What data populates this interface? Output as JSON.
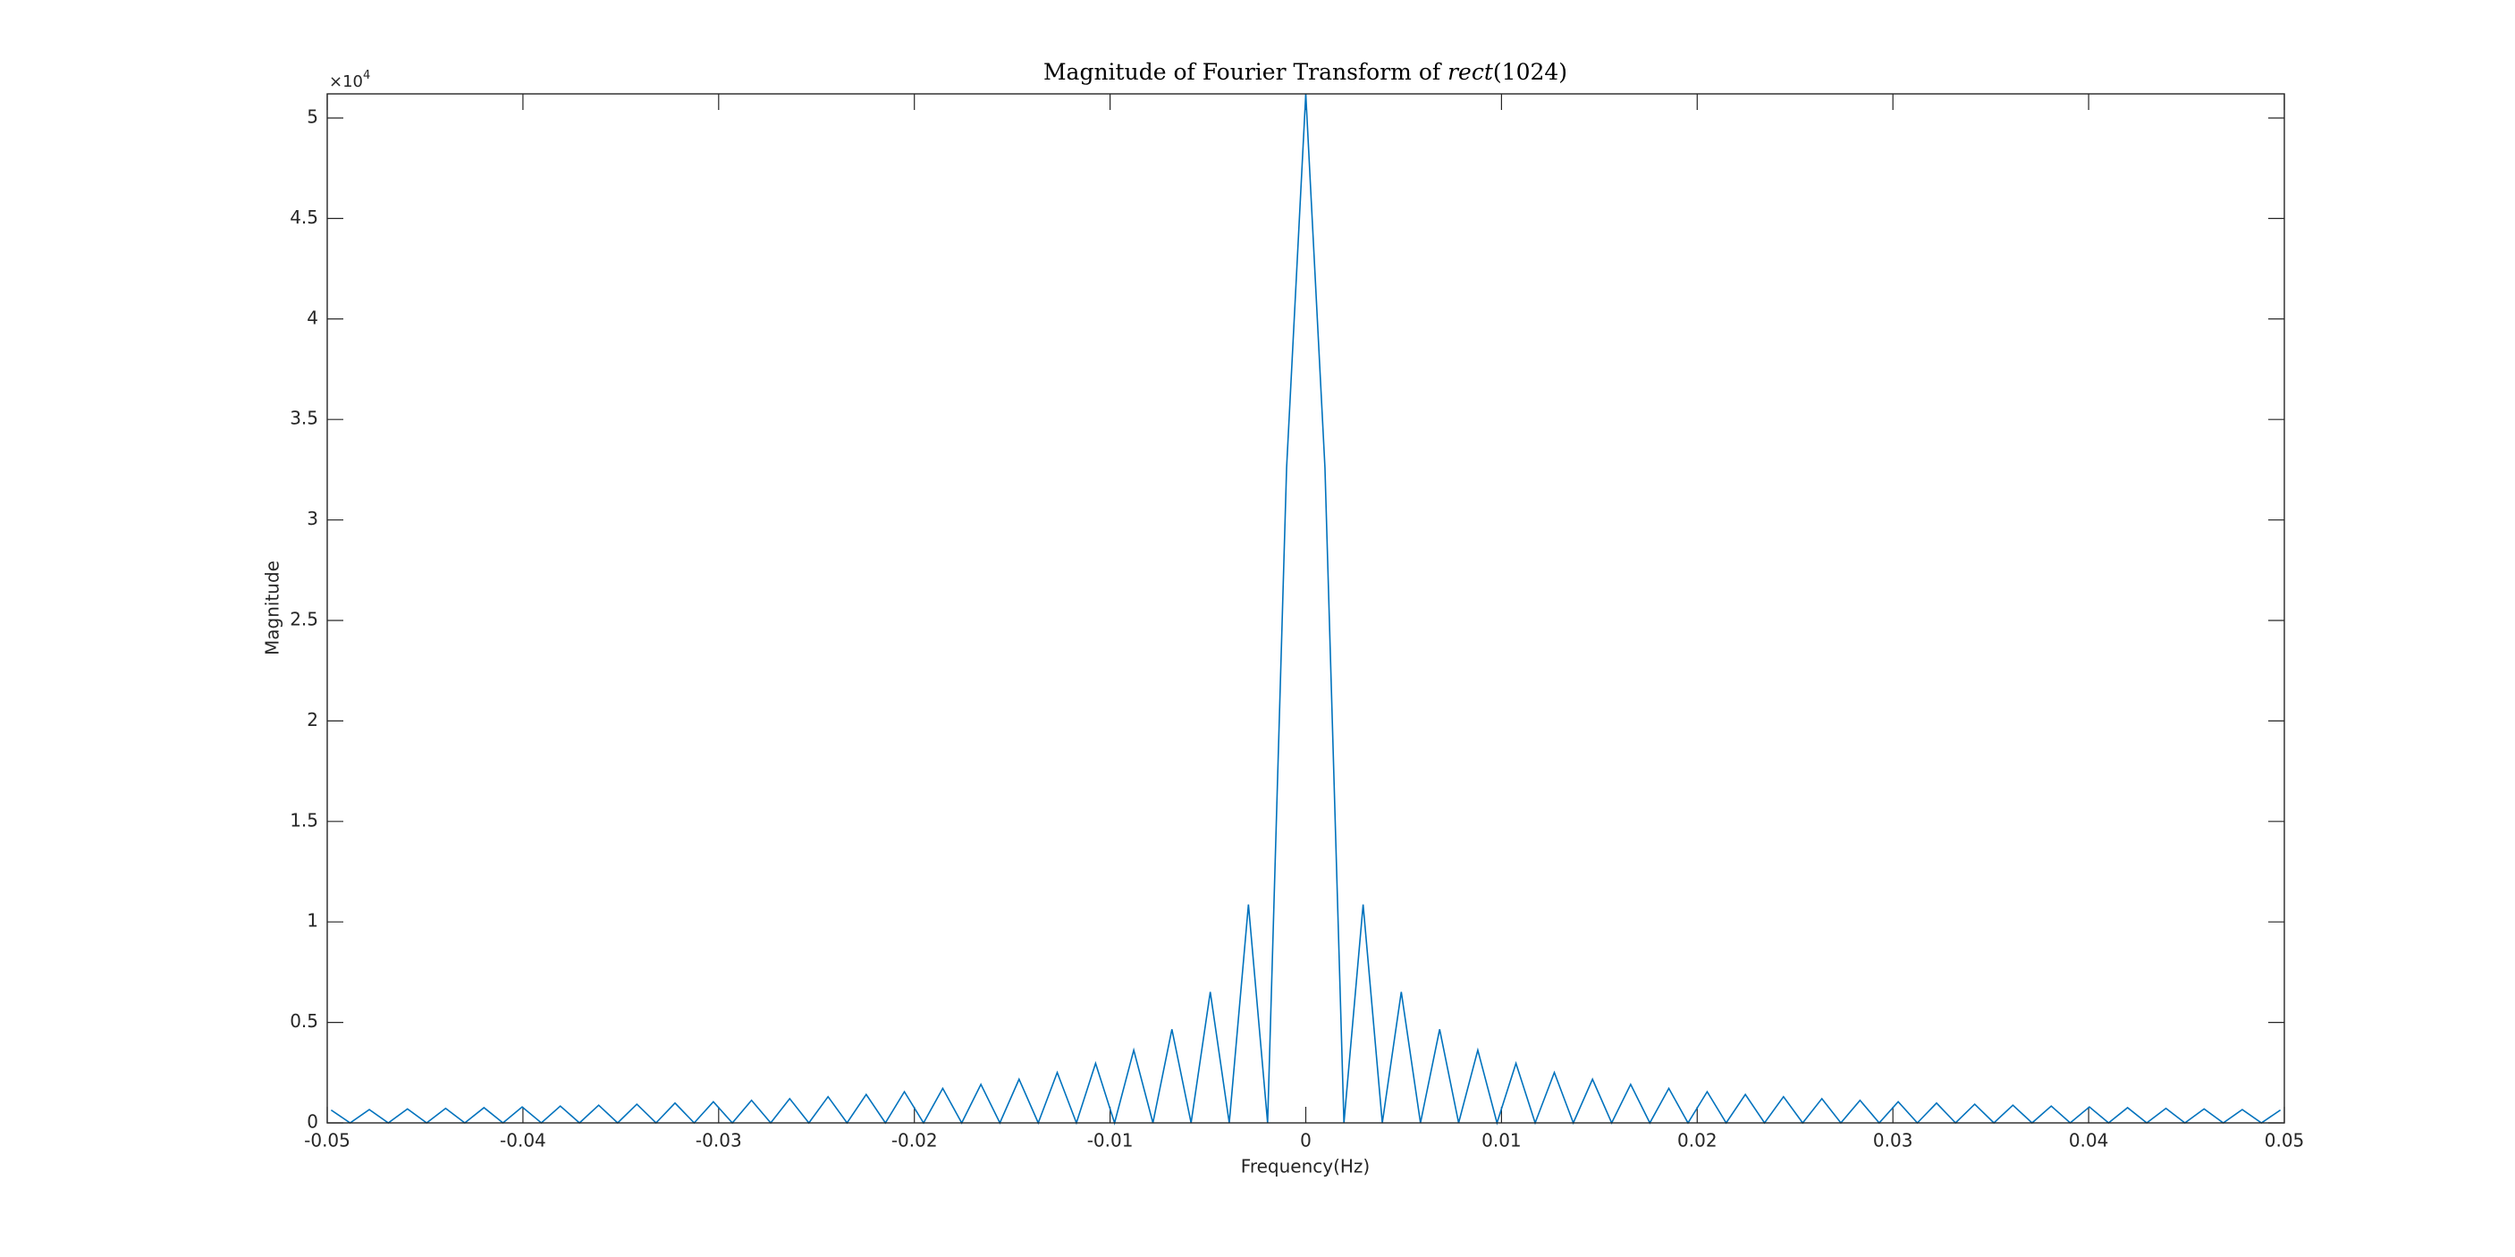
{
  "chart_data": {
    "type": "line",
    "title_parts": [
      "Magnitude of Fourier Transform of",
      "rect",
      "(1024)"
    ],
    "x_label": "Frequency(Hz)",
    "y_label": "Magnitude",
    "y_multiplier_base": "×10",
    "y_multiplier_exponent": "4",
    "color": "#0072bd",
    "xlim": [
      -0.05,
      0.05
    ],
    "xticks": [
      -0.05,
      -0.04,
      -0.03,
      -0.02,
      -0.01,
      0,
      0.01,
      0.02,
      0.03,
      0.04,
      0.05
    ],
    "ylim": [
      0,
      51200
    ],
    "yticks": [
      0,
      {
        "value": 5000,
        "label": "0.5"
      },
      {
        "value": 10000,
        "label": "1"
      },
      {
        "value": 15000,
        "label": "1.5"
      },
      {
        "value": 20000,
        "label": "2"
      },
      {
        "value": 25000,
        "label": "2.5"
      },
      {
        "value": 30000,
        "label": "3"
      },
      {
        "value": 35000,
        "label": "3.5"
      },
      {
        "value": 40000,
        "label": "4"
      },
      {
        "value": 45000,
        "label": "4.5"
      },
      {
        "value": 50000,
        "label": "5"
      }
    ],
    "x": [
      -0.0498,
      -0.04883,
      -0.04785,
      -0.04688,
      -0.0459,
      -0.04492,
      -0.04395,
      -0.04297,
      -0.04199,
      -0.04102,
      -0.04004,
      -0.03906,
      -0.03809,
      -0.03711,
      -0.03613,
      -0.03516,
      -0.03418,
      -0.0332,
      -0.03223,
      -0.03125,
      -0.03027,
      -0.0293,
      -0.02832,
      -0.02734,
      -0.02637,
      -0.02539,
      -0.02441,
      -0.02344,
      -0.02246,
      -0.02148,
      -0.02051,
      -0.01953,
      -0.01855,
      -0.01758,
      -0.0166,
      -0.01563,
      -0.01465,
      -0.01367,
      -0.0127,
      -0.01172,
      -0.01074,
      -0.00977,
      -0.00879,
      -0.00781,
      -0.00684,
      -0.00586,
      -0.00488,
      -0.00391,
      -0.00293,
      -0.00195,
      -0.00098,
      0,
      0.00098,
      0.00195,
      0.00293,
      0.00391,
      0.00488,
      0.00586,
      0.00684,
      0.00781,
      0.00879,
      0.00977,
      0.01074,
      0.01172,
      0.0127,
      0.01367,
      0.01465,
      0.01563,
      0.0166,
      0.01758,
      0.01855,
      0.01953,
      0.02051,
      0.02148,
      0.02246,
      0.02344,
      0.02441,
      0.02539,
      0.02637,
      0.02734,
      0.02832,
      0.0293,
      0.03027,
      0.03125,
      0.03223,
      0.0332,
      0.03418,
      0.03516,
      0.03613,
      0.03711,
      0.03809,
      0.03906,
      0.04004,
      0.04102,
      0.04199,
      0.04297,
      0.04395,
      0.04492,
      0.0459,
      0.04688,
      0.04785,
      0.04883,
      0.0498
    ],
    "values": [
      639,
      0,
      665,
      0,
      694,
      0,
      724,
      0,
      758,
      0,
      795,
      0,
      836,
      0,
      881,
      0,
      931,
      0,
      988,
      0,
      1051,
      0,
      1124,
      0,
      1207,
      0,
      1304,
      0,
      1417,
      0,
      1552,
      0,
      1716,
      0,
      1917,
      0,
      2173,
      0,
      2507,
      0,
      2963,
      0,
      3622,
      0,
      4656,
      0,
      6519,
      0,
      10865,
      0,
      32595,
      51200,
      32595,
      0,
      10865,
      0,
      6519,
      0,
      4656,
      0,
      3622,
      0,
      2963,
      0,
      2507,
      0,
      2173,
      0,
      1917,
      0,
      1716,
      0,
      1552,
      0,
      1417,
      0,
      1304,
      0,
      1207,
      0,
      1124,
      0,
      1051,
      0,
      988,
      0,
      931,
      0,
      881,
      0,
      836,
      0,
      795,
      0,
      758,
      0,
      724,
      0,
      694,
      0,
      665,
      0,
      639
    ]
  }
}
